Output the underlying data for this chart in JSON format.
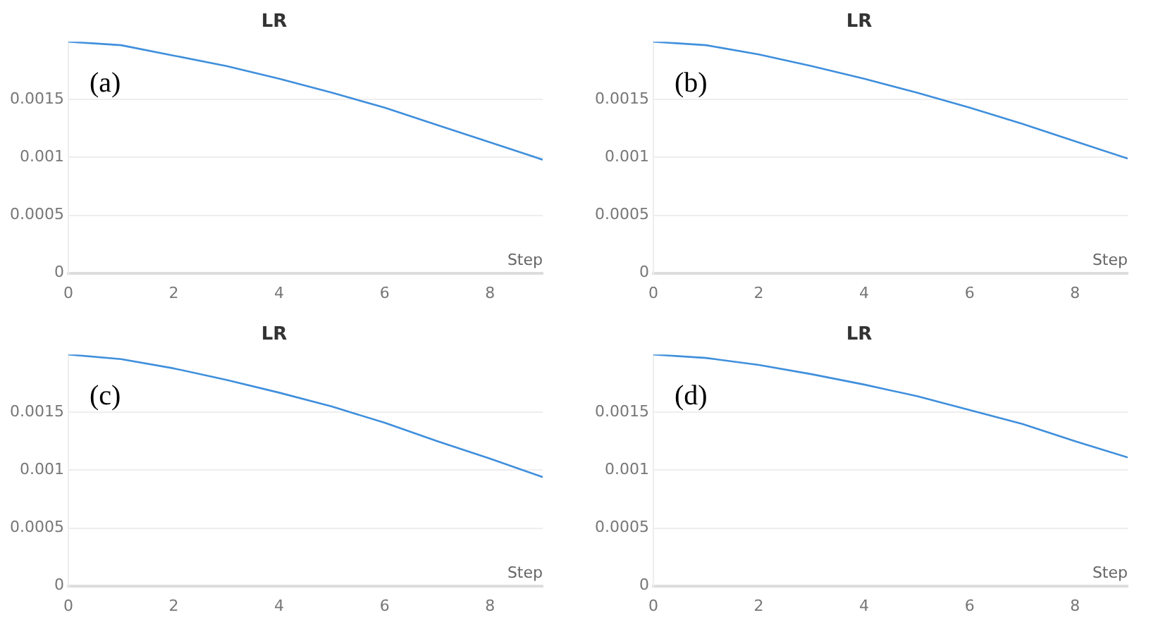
{
  "chart_data": [
    {
      "type": "line",
      "title": "LR",
      "xlabel": "Step",
      "annotations": [
        "(a)"
      ],
      "x": [
        0,
        1,
        2,
        3,
        4,
        5,
        6,
        7,
        8,
        9
      ],
      "series": [
        {
          "color": "#3f8fdc",
          "values": [
            0.002,
            0.00197,
            0.00188,
            0.00179,
            0.00168,
            0.00156,
            0.00143,
            0.00128,
            0.00113,
            0.00098
          ]
        }
      ],
      "xlim": [
        0,
        9
      ],
      "xticks": [
        0,
        2,
        4,
        6,
        8
      ],
      "ylim": [
        0,
        0.002
      ],
      "yticks": [
        0,
        0.0005,
        0.001,
        0.0015
      ],
      "grid": "y",
      "legend": false,
      "marker": "none"
    },
    {
      "type": "line",
      "title": "LR",
      "xlabel": "Step",
      "annotations": [
        "(b)"
      ],
      "x": [
        0,
        1,
        2,
        3,
        4,
        5,
        6,
        7,
        8,
        9
      ],
      "series": [
        {
          "color": "#3f8fdc",
          "values": [
            0.002,
            0.00197,
            0.00189,
            0.00179,
            0.00168,
            0.00156,
            0.00143,
            0.00129,
            0.00114,
            0.00099
          ]
        }
      ],
      "xlim": [
        0,
        9
      ],
      "xticks": [
        0,
        2,
        4,
        6,
        8
      ],
      "ylim": [
        0,
        0.002
      ],
      "yticks": [
        0,
        0.0005,
        0.001,
        0.0015
      ],
      "grid": "y",
      "legend": false,
      "marker": "none"
    },
    {
      "type": "line",
      "title": "LR",
      "xlabel": "Step",
      "annotations": [
        "(c)"
      ],
      "x": [
        0,
        1,
        2,
        3,
        4,
        5,
        6,
        7,
        8,
        9
      ],
      "series": [
        {
          "color": "#3f8fdc",
          "values": [
            0.002,
            0.00196,
            0.00188,
            0.00178,
            0.00167,
            0.00155,
            0.00141,
            0.00125,
            0.0011,
            0.00094
          ]
        }
      ],
      "xlim": [
        0,
        9
      ],
      "xticks": [
        0,
        2,
        4,
        6,
        8
      ],
      "ylim": [
        0,
        0.002
      ],
      "yticks": [
        0,
        0.0005,
        0.001,
        0.0015
      ],
      "grid": "y",
      "legend": false,
      "marker": "none"
    },
    {
      "type": "line",
      "title": "LR",
      "xlabel": "Step",
      "annotations": [
        "(d)"
      ],
      "x": [
        0,
        1,
        2,
        3,
        4,
        5,
        6,
        7,
        8,
        9
      ],
      "series": [
        {
          "color": "#3f8fdc",
          "values": [
            0.002,
            0.00197,
            0.00191,
            0.00183,
            0.00174,
            0.00164,
            0.00152,
            0.0014,
            0.00125,
            0.00111
          ]
        }
      ],
      "xlim": [
        0,
        9
      ],
      "xticks": [
        0,
        2,
        4,
        6,
        8
      ],
      "ylim": [
        0,
        0.002
      ],
      "yticks": [
        0,
        0.0005,
        0.001,
        0.0015
      ],
      "grid": "y",
      "legend": false,
      "marker": "none"
    }
  ]
}
